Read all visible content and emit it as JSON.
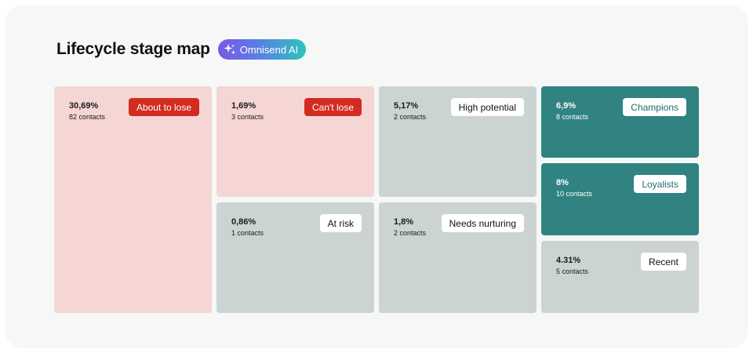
{
  "header": {
    "title": "Lifecycle stage map",
    "ai_badge": "Omnisend AI"
  },
  "stages": {
    "about_to_lose": {
      "label": "About to lose",
      "percent": "30,69%",
      "contacts": "82 contacts"
    },
    "cant_lose": {
      "label": "Can't lose",
      "percent": "1,69%",
      "contacts": "3 contacts"
    },
    "at_risk": {
      "label": "At risk",
      "percent": "0,86%",
      "contacts": "1 contacts"
    },
    "high_potential": {
      "label": "High potential",
      "percent": "5,17%",
      "contacts": "2 contacts"
    },
    "needs_nurturing": {
      "label": "Needs nurturing",
      "percent": "1,8%",
      "contacts": "2 contacts"
    },
    "champions": {
      "label": "Champions",
      "percent": "6,9%",
      "contacts": "8 contacts"
    },
    "loyalists": {
      "label": "Loyalists",
      "percent": "8%",
      "contacts": "10 contacts"
    },
    "recent": {
      "label": "Recent",
      "percent": "4.31%",
      "contacts": "5 contacts"
    }
  },
  "colors": {
    "risk_tile": "#f5d6d5",
    "neutral_tile": "#cbd4d3",
    "positive_tile": "#308381",
    "risk_tag": "#d22b20"
  }
}
